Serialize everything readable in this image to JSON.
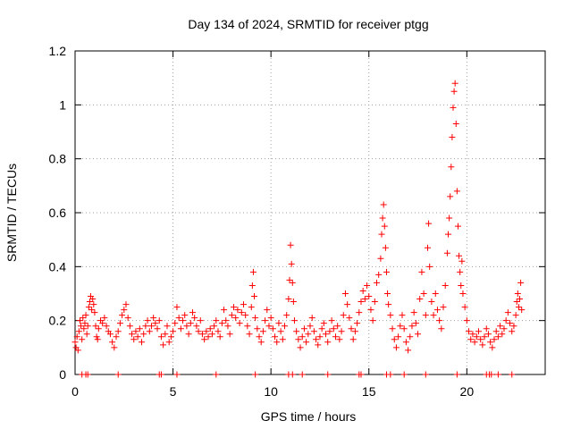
{
  "chart_data": {
    "type": "scatter",
    "title": "Day 134 of 2024, SRMTID for receiver ptgg",
    "xlabel": "GPS time / hours",
    "ylabel": "SRMTID / TECUs",
    "xlim": [
      0,
      24
    ],
    "ylim": [
      0,
      1.2
    ],
    "x_ticks": [
      0,
      5,
      10,
      15,
      20
    ],
    "x_tick_labels": [
      "0",
      "5",
      "10",
      "15",
      "20"
    ],
    "y_ticks": [
      0,
      0.2,
      0.4,
      0.6,
      0.8,
      1.0,
      1.2
    ],
    "y_tick_labels": [
      "0",
      "0.2",
      "0.4",
      "0.6",
      "0.8",
      "1",
      "1.2"
    ],
    "grid": true,
    "marker": "+",
    "series": [
      {
        "name": "SRMTID",
        "color": "#ff0000",
        "points": [
          [
            0.0,
            0.12
          ],
          [
            0.05,
            0.1
          ],
          [
            0.1,
            0.14
          ],
          [
            0.15,
            0.09
          ],
          [
            0.2,
            0.16
          ],
          [
            0.25,
            0.2
          ],
          [
            0.3,
            0.18
          ],
          [
            0.35,
            0.13
          ],
          [
            0.4,
            0.21
          ],
          [
            0.45,
            0.17
          ],
          [
            0.5,
            0.19
          ],
          [
            0.55,
            0.22
          ],
          [
            0.6,
            0.15
          ],
          [
            0.65,
            0.18
          ],
          [
            0.7,
            0.25
          ],
          [
            0.75,
            0.27
          ],
          [
            0.8,
            0.29
          ],
          [
            0.85,
            0.24
          ],
          [
            0.9,
            0.28
          ],
          [
            0.95,
            0.26
          ],
          [
            1.0,
            0.23
          ],
          [
            1.05,
            0.18
          ],
          [
            1.1,
            0.14
          ],
          [
            1.15,
            0.13
          ],
          [
            1.2,
            0.17
          ],
          [
            1.3,
            0.2
          ],
          [
            1.4,
            0.19
          ],
          [
            1.5,
            0.21
          ],
          [
            1.6,
            0.18
          ],
          [
            1.7,
            0.16
          ],
          [
            1.8,
            0.15
          ],
          [
            1.9,
            0.12
          ],
          [
            2.0,
            0.1
          ],
          [
            2.1,
            0.14
          ],
          [
            2.2,
            0.16
          ],
          [
            2.3,
            0.19
          ],
          [
            2.4,
            0.22
          ],
          [
            2.5,
            0.24
          ],
          [
            2.6,
            0.26
          ],
          [
            2.7,
            0.21
          ],
          [
            2.8,
            0.18
          ],
          [
            2.9,
            0.15
          ],
          [
            3.0,
            0.13
          ],
          [
            3.1,
            0.16
          ],
          [
            3.2,
            0.14
          ],
          [
            3.3,
            0.17
          ],
          [
            3.4,
            0.12
          ],
          [
            3.5,
            0.15
          ],
          [
            3.6,
            0.18
          ],
          [
            3.7,
            0.2
          ],
          [
            3.8,
            0.16
          ],
          [
            3.9,
            0.18
          ],
          [
            4.0,
            0.21
          ],
          [
            4.1,
            0.19
          ],
          [
            4.2,
            0.17
          ],
          [
            4.3,
            0.2
          ],
          [
            4.4,
            0.14
          ],
          [
            4.5,
            0.11
          ],
          [
            4.6,
            0.15
          ],
          [
            4.7,
            0.18
          ],
          [
            4.8,
            0.12
          ],
          [
            4.9,
            0.14
          ],
          [
            5.0,
            0.16
          ],
          [
            5.1,
            0.19
          ],
          [
            5.2,
            0.25
          ],
          [
            5.3,
            0.21
          ],
          [
            5.4,
            0.17
          ],
          [
            5.5,
            0.2
          ],
          [
            5.6,
            0.22
          ],
          [
            5.7,
            0.18
          ],
          [
            5.8,
            0.15
          ],
          [
            5.9,
            0.19
          ],
          [
            6.0,
            0.23
          ],
          [
            6.1,
            0.21
          ],
          [
            6.2,
            0.18
          ],
          [
            6.3,
            0.16
          ],
          [
            6.4,
            0.2
          ],
          [
            6.5,
            0.15
          ],
          [
            6.6,
            0.13
          ],
          [
            6.7,
            0.16
          ],
          [
            6.8,
            0.14
          ],
          [
            6.9,
            0.17
          ],
          [
            7.0,
            0.15
          ],
          [
            7.1,
            0.18
          ],
          [
            7.2,
            0.2
          ],
          [
            7.3,
            0.16
          ],
          [
            7.4,
            0.14
          ],
          [
            7.5,
            0.19
          ],
          [
            7.6,
            0.24
          ],
          [
            7.7,
            0.2
          ],
          [
            7.8,
            0.18
          ],
          [
            7.9,
            0.15
          ],
          [
            8.0,
            0.22
          ],
          [
            8.1,
            0.25
          ],
          [
            8.2,
            0.21
          ],
          [
            8.3,
            0.24
          ],
          [
            8.4,
            0.19
          ],
          [
            8.5,
            0.23
          ],
          [
            8.6,
            0.26
          ],
          [
            8.7,
            0.22
          ],
          [
            8.8,
            0.18
          ],
          [
            8.9,
            0.15
          ],
          [
            9.0,
            0.25
          ],
          [
            9.05,
            0.33
          ],
          [
            9.1,
            0.38
          ],
          [
            9.15,
            0.29
          ],
          [
            9.2,
            0.21
          ],
          [
            9.3,
            0.17
          ],
          [
            9.4,
            0.14
          ],
          [
            9.5,
            0.12
          ],
          [
            9.6,
            0.16
          ],
          [
            9.7,
            0.2
          ],
          [
            9.8,
            0.24
          ],
          [
            9.9,
            0.18
          ],
          [
            10.0,
            0.21
          ],
          [
            10.1,
            0.17
          ],
          [
            10.2,
            0.14
          ],
          [
            10.3,
            0.12
          ],
          [
            10.4,
            0.19
          ],
          [
            10.5,
            0.16
          ],
          [
            10.6,
            0.13
          ],
          [
            10.7,
            0.18
          ],
          [
            10.8,
            0.22
          ],
          [
            10.9,
            0.28
          ],
          [
            10.95,
            0.35
          ],
          [
            11.0,
            0.48
          ],
          [
            11.05,
            0.41
          ],
          [
            11.1,
            0.34
          ],
          [
            11.15,
            0.27
          ],
          [
            11.2,
            0.2
          ],
          [
            11.3,
            0.16
          ],
          [
            11.4,
            0.13
          ],
          [
            11.5,
            0.1
          ],
          [
            11.6,
            0.14
          ],
          [
            11.7,
            0.17
          ],
          [
            11.8,
            0.12
          ],
          [
            11.9,
            0.15
          ],
          [
            12.0,
            0.18
          ],
          [
            12.1,
            0.21
          ],
          [
            12.2,
            0.16
          ],
          [
            12.3,
            0.13
          ],
          [
            12.4,
            0.11
          ],
          [
            12.5,
            0.14
          ],
          [
            12.6,
            0.17
          ],
          [
            12.7,
            0.19
          ],
          [
            12.8,
            0.15
          ],
          [
            12.9,
            0.12
          ],
          [
            13.0,
            0.16
          ],
          [
            13.1,
            0.2
          ],
          [
            13.2,
            0.17
          ],
          [
            13.3,
            0.14
          ],
          [
            13.4,
            0.18
          ],
          [
            13.5,
            0.13
          ],
          [
            13.6,
            0.16
          ],
          [
            13.7,
            0.22
          ],
          [
            13.8,
            0.3
          ],
          [
            13.9,
            0.26
          ],
          [
            14.0,
            0.21
          ],
          [
            14.1,
            0.17
          ],
          [
            14.2,
            0.13
          ],
          [
            14.3,
            0.16
          ],
          [
            14.4,
            0.19
          ],
          [
            14.5,
            0.23
          ],
          [
            14.6,
            0.27
          ],
          [
            14.7,
            0.31
          ],
          [
            14.8,
            0.28
          ],
          [
            14.9,
            0.33
          ],
          [
            15.0,
            0.29
          ],
          [
            15.1,
            0.24
          ],
          [
            15.2,
            0.2
          ],
          [
            15.3,
            0.27
          ],
          [
            15.4,
            0.34
          ],
          [
            15.5,
            0.37
          ],
          [
            15.6,
            0.43
          ],
          [
            15.65,
            0.52
          ],
          [
            15.7,
            0.58
          ],
          [
            15.75,
            0.63
          ],
          [
            15.8,
            0.55
          ],
          [
            15.85,
            0.47
          ],
          [
            15.9,
            0.38
          ],
          [
            15.95,
            0.3
          ],
          [
            16.0,
            0.26
          ],
          [
            16.1,
            0.22
          ],
          [
            16.2,
            0.17
          ],
          [
            16.3,
            0.13
          ],
          [
            16.4,
            0.1
          ],
          [
            16.5,
            0.14
          ],
          [
            16.6,
            0.18
          ],
          [
            16.7,
            0.22
          ],
          [
            16.8,
            0.17
          ],
          [
            16.9,
            0.12
          ],
          [
            17.0,
            0.09
          ],
          [
            17.1,
            0.14
          ],
          [
            17.2,
            0.18
          ],
          [
            17.3,
            0.23
          ],
          [
            17.4,
            0.19
          ],
          [
            17.5,
            0.15
          ],
          [
            17.6,
            0.28
          ],
          [
            17.7,
            0.38
          ],
          [
            17.8,
            0.3
          ],
          [
            17.9,
            0.22
          ],
          [
            18.0,
            0.47
          ],
          [
            18.05,
            0.56
          ],
          [
            18.1,
            0.4
          ],
          [
            18.2,
            0.27
          ],
          [
            18.3,
            0.22
          ],
          [
            18.4,
            0.3
          ],
          [
            18.5,
            0.24
          ],
          [
            18.6,
            0.2
          ],
          [
            18.7,
            0.17
          ],
          [
            18.8,
            0.25
          ],
          [
            18.9,
            0.33
          ],
          [
            19.0,
            0.45
          ],
          [
            19.05,
            0.52
          ],
          [
            19.1,
            0.58
          ],
          [
            19.15,
            0.66
          ],
          [
            19.2,
            0.77
          ],
          [
            19.25,
            0.88
          ],
          [
            19.3,
            0.99
          ],
          [
            19.35,
            1.05
          ],
          [
            19.4,
            1.08
          ],
          [
            19.45,
            0.93
          ],
          [
            19.5,
            0.68
          ],
          [
            19.55,
            0.55
          ],
          [
            19.6,
            0.44
          ],
          [
            19.65,
            0.38
          ],
          [
            19.7,
            0.33
          ],
          [
            19.75,
            0.42
          ],
          [
            19.8,
            0.3
          ],
          [
            19.9,
            0.25
          ],
          [
            20.0,
            0.2
          ],
          [
            20.1,
            0.16
          ],
          [
            20.2,
            0.13
          ],
          [
            20.3,
            0.15
          ],
          [
            20.4,
            0.12
          ],
          [
            20.5,
            0.14
          ],
          [
            20.6,
            0.16
          ],
          [
            20.7,
            0.13
          ],
          [
            20.8,
            0.11
          ],
          [
            20.9,
            0.14
          ],
          [
            21.0,
            0.17
          ],
          [
            21.1,
            0.15
          ],
          [
            21.2,
            0.12
          ],
          [
            21.3,
            0.1
          ],
          [
            21.4,
            0.13
          ],
          [
            21.5,
            0.16
          ],
          [
            21.6,
            0.14
          ],
          [
            21.7,
            0.18
          ],
          [
            21.8,
            0.15
          ],
          [
            21.9,
            0.17
          ],
          [
            22.0,
            0.2
          ],
          [
            22.1,
            0.23
          ],
          [
            22.2,
            0.19
          ],
          [
            22.3,
            0.16
          ],
          [
            22.4,
            0.18
          ],
          [
            22.5,
            0.22
          ],
          [
            22.55,
            0.27
          ],
          [
            22.6,
            0.3
          ],
          [
            22.65,
            0.25
          ],
          [
            22.7,
            0.28
          ],
          [
            22.75,
            0.34
          ],
          [
            22.8,
            0.24
          ]
        ],
        "zero_points": [
          0.35,
          0.55,
          0.65,
          2.2,
          4.3,
          4.4,
          5.2,
          7.2,
          9.2,
          10.9,
          11.1,
          11.6,
          12.9,
          14.5,
          14.6,
          15.9,
          16.1,
          16.8,
          17.9,
          19.5,
          21.0,
          21.15,
          21.25,
          21.6,
          22.3
        ]
      }
    ]
  }
}
